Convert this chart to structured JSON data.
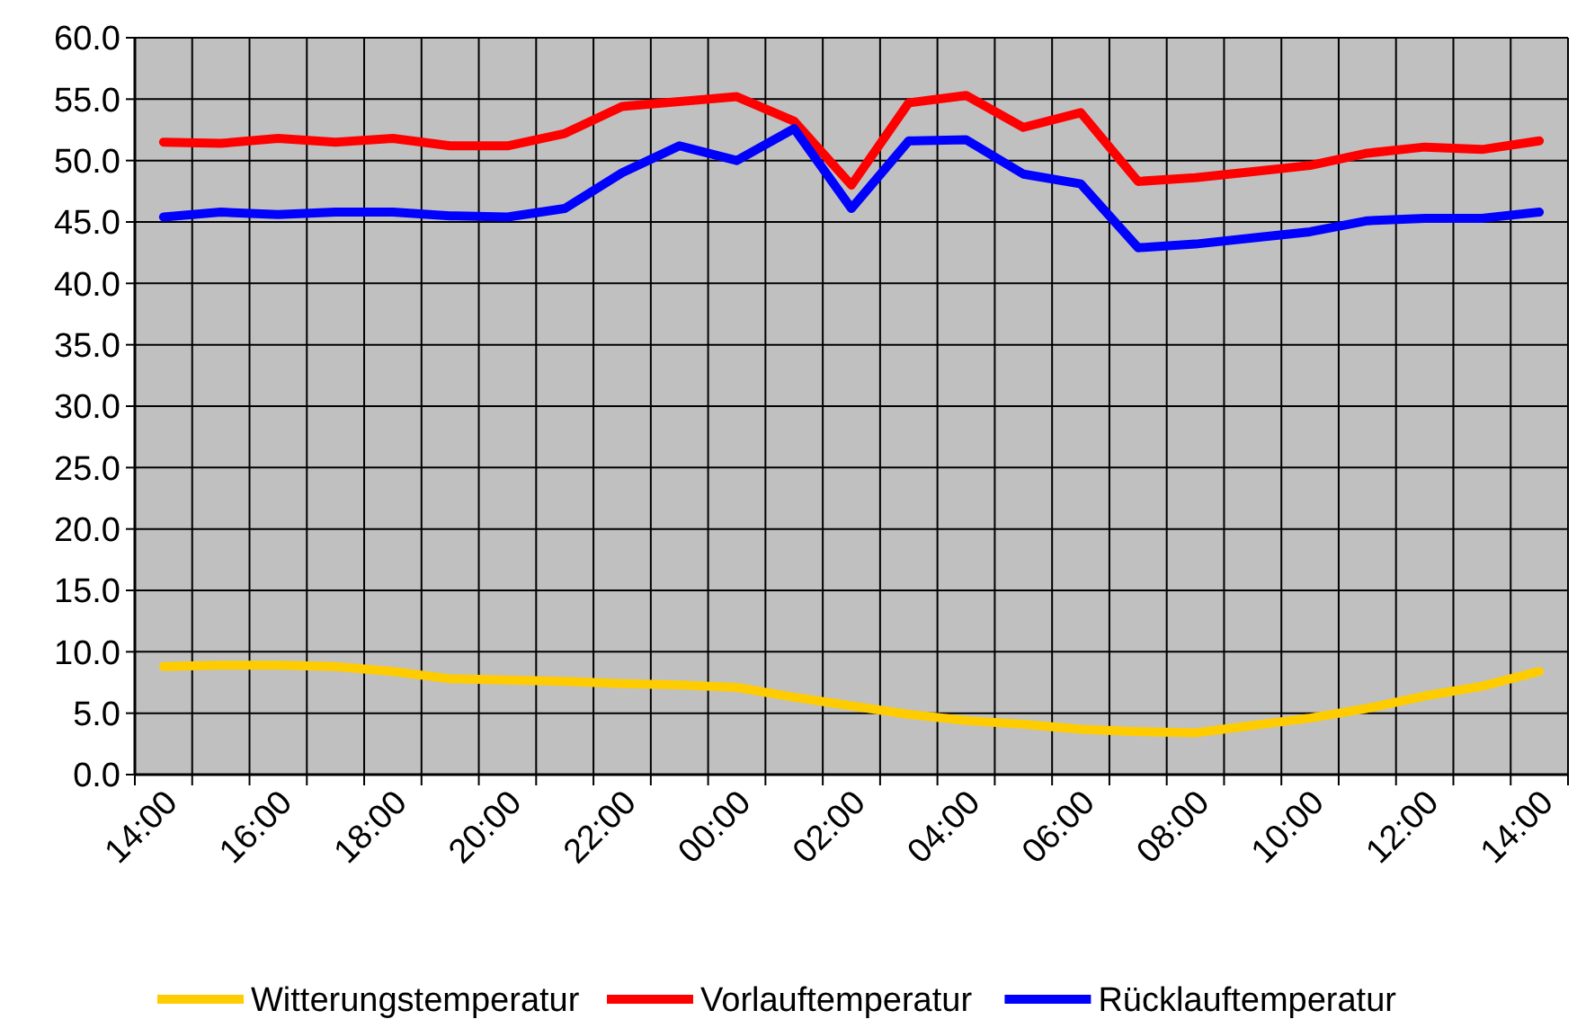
{
  "chart_data": {
    "type": "line",
    "categories": [
      "14:00",
      null,
      "16:00",
      null,
      "18:00",
      null,
      "20:00",
      null,
      "22:00",
      null,
      "00:00",
      null,
      "02:00",
      null,
      "04:00",
      null,
      "06:00",
      null,
      "08:00",
      null,
      "10:00",
      null,
      "12:00",
      null,
      "14:00"
    ],
    "series": [
      {
        "name": "Witterungstemperatur",
        "color": "#ffcc00",
        "values": [
          8.8,
          8.9,
          8.9,
          8.8,
          8.4,
          7.8,
          7.7,
          7.6,
          7.4,
          7.3,
          7.1,
          6.3,
          5.6,
          4.9,
          4.4,
          4.1,
          3.7,
          3.5,
          3.4,
          4.0,
          4.6,
          5.4,
          6.4,
          7.2,
          8.4
        ]
      },
      {
        "name": "Vorlauftemperatur",
        "color": "#ff0000",
        "values": [
          51.5,
          51.4,
          51.8,
          51.5,
          51.8,
          51.2,
          51.2,
          52.2,
          54.4,
          54.8,
          55.2,
          53.2,
          48.0,
          54.7,
          55.3,
          52.7,
          53.9,
          48.3,
          48.6,
          49.1,
          49.6,
          50.6,
          51.1,
          50.9,
          51.6
        ]
      },
      {
        "name": "Rücklauftemperatur",
        "color": "#0000ff",
        "values": [
          45.4,
          45.8,
          45.6,
          45.8,
          45.8,
          45.5,
          45.4,
          46.1,
          49.0,
          51.2,
          50.0,
          52.6,
          46.1,
          51.6,
          51.7,
          48.9,
          48.1,
          42.9,
          43.2,
          43.7,
          44.2,
          45.1,
          45.3,
          45.3,
          45.8
        ]
      }
    ],
    "ylim": [
      0,
      60
    ],
    "yticks": [
      {
        "value": 0,
        "label": "0.0"
      },
      {
        "value": 5,
        "label": "5.0"
      },
      {
        "value": 10,
        "label": "10.0"
      },
      {
        "value": 15,
        "label": "15.0"
      },
      {
        "value": 20,
        "label": "20.0"
      },
      {
        "value": 25,
        "label": "25.0"
      },
      {
        "value": 30,
        "label": "30.0"
      },
      {
        "value": 35,
        "label": "35.0"
      },
      {
        "value": 40,
        "label": "40.0"
      },
      {
        "value": 45,
        "label": "45.0"
      },
      {
        "value": 50,
        "label": "50.0"
      },
      {
        "value": 55,
        "label": "55.0"
      },
      {
        "value": 60,
        "label": "60.0"
      }
    ],
    "grid": true,
    "legend": "bottom",
    "marker": "none",
    "line_style": "solid"
  }
}
